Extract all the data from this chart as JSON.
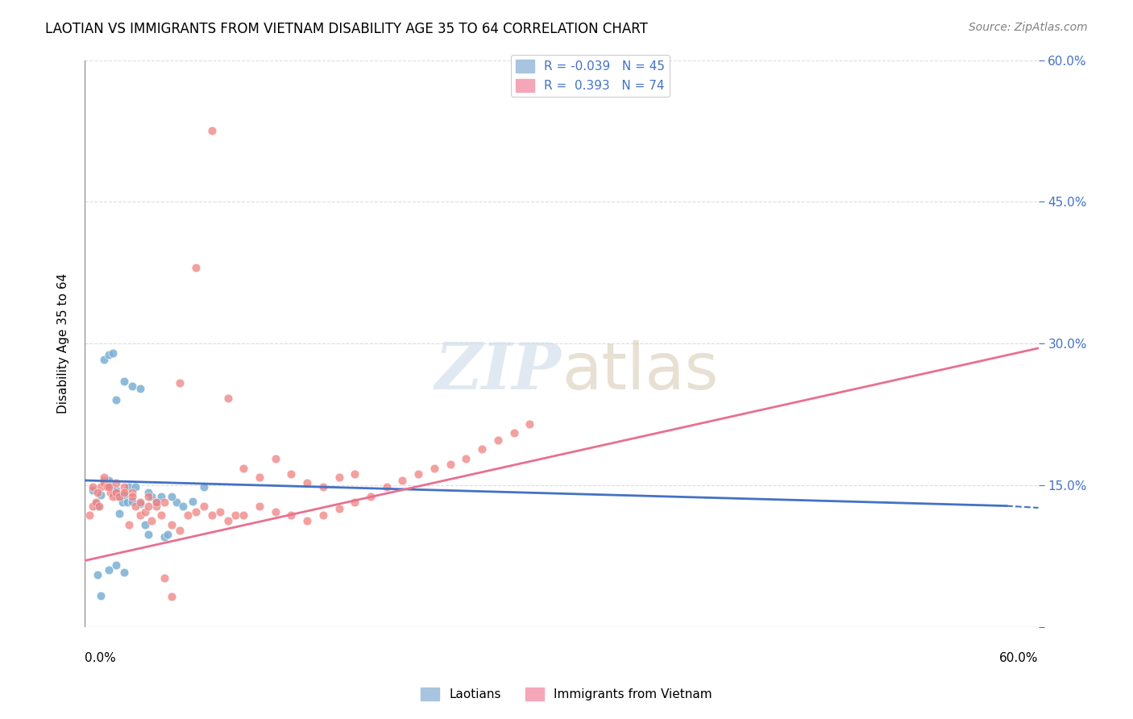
{
  "title": "LAOTIAN VS IMMIGRANTS FROM VIETNAM DISABILITY AGE 35 TO 64 CORRELATION CHART",
  "source": "Source: ZipAtlas.com",
  "ylabel": "Disability Age 35 to 64",
  "xlim": [
    0.0,
    0.6
  ],
  "ylim": [
    0.0,
    0.6
  ],
  "yticks": [
    0.0,
    0.15,
    0.3,
    0.45,
    0.6
  ],
  "ytick_labels": [
    "",
    "15.0%",
    "30.0%",
    "45.0%",
    "60.0%"
  ],
  "laotian_color": "#7bafd4",
  "vietnam_color": "#f08080",
  "laotian_line_color": "#4472c4",
  "vietnam_line_color": "#e87090",
  "legend_patch_lao": "#a8c4e0",
  "legend_patch_viet": "#f4a7b9",
  "background_color": "#ffffff",
  "grid_color": "#dddddd",
  "lao_line": {
    "x0": 0.0,
    "y0": 0.155,
    "x1": 0.58,
    "y1": 0.128,
    "xd0": 0.58,
    "yd0": 0.128,
    "xd1": 0.6,
    "yd1": 0.126
  },
  "viet_line": {
    "x0": 0.0,
    "y0": 0.07,
    "x1": 0.6,
    "y1": 0.295
  },
  "lao_x": [
    0.005,
    0.007,
    0.008,
    0.01,
    0.012,
    0.014,
    0.015,
    0.016,
    0.018,
    0.019,
    0.02,
    0.021,
    0.022,
    0.024,
    0.025,
    0.027,
    0.028,
    0.03,
    0.032,
    0.035,
    0.038,
    0.04,
    0.042,
    0.045,
    0.05,
    0.052,
    0.058,
    0.062,
    0.068,
    0.075,
    0.012,
    0.015,
    0.018,
    0.02,
    0.025,
    0.03,
    0.035,
    0.04,
    0.048,
    0.055,
    0.008,
    0.01,
    0.015,
    0.02,
    0.025
  ],
  "lao_y": [
    0.145,
    0.13,
    0.128,
    0.14,
    0.155,
    0.15,
    0.155,
    0.148,
    0.145,
    0.142,
    0.145,
    0.138,
    0.12,
    0.132,
    0.14,
    0.132,
    0.148,
    0.133,
    0.148,
    0.13,
    0.108,
    0.098,
    0.138,
    0.132,
    0.095,
    0.098,
    0.132,
    0.128,
    0.133,
    0.148,
    0.283,
    0.288,
    0.29,
    0.24,
    0.26,
    0.255,
    0.252,
    0.142,
    0.138,
    0.138,
    0.055,
    0.033,
    0.06,
    0.065,
    0.058
  ],
  "viet_x": [
    0.003,
    0.005,
    0.007,
    0.009,
    0.01,
    0.012,
    0.014,
    0.016,
    0.018,
    0.02,
    0.022,
    0.025,
    0.028,
    0.03,
    0.032,
    0.035,
    0.038,
    0.04,
    0.042,
    0.045,
    0.048,
    0.05,
    0.055,
    0.06,
    0.065,
    0.07,
    0.075,
    0.08,
    0.085,
    0.09,
    0.095,
    0.1,
    0.11,
    0.12,
    0.13,
    0.14,
    0.15,
    0.16,
    0.17,
    0.18,
    0.19,
    0.2,
    0.21,
    0.22,
    0.23,
    0.24,
    0.25,
    0.26,
    0.27,
    0.28,
    0.005,
    0.008,
    0.012,
    0.015,
    0.02,
    0.025,
    0.03,
    0.035,
    0.04,
    0.045,
    0.05,
    0.055,
    0.06,
    0.07,
    0.08,
    0.09,
    0.1,
    0.11,
    0.12,
    0.13,
    0.14,
    0.15,
    0.16,
    0.17
  ],
  "viet_y": [
    0.118,
    0.128,
    0.132,
    0.128,
    0.148,
    0.152,
    0.148,
    0.142,
    0.138,
    0.142,
    0.138,
    0.148,
    0.108,
    0.142,
    0.128,
    0.118,
    0.122,
    0.138,
    0.112,
    0.128,
    0.118,
    0.132,
    0.108,
    0.102,
    0.118,
    0.122,
    0.128,
    0.118,
    0.122,
    0.112,
    0.118,
    0.118,
    0.128,
    0.122,
    0.118,
    0.112,
    0.118,
    0.125,
    0.132,
    0.138,
    0.148,
    0.155,
    0.162,
    0.168,
    0.172,
    0.178,
    0.188,
    0.198,
    0.205,
    0.215,
    0.148,
    0.142,
    0.158,
    0.148,
    0.152,
    0.142,
    0.138,
    0.132,
    0.128,
    0.132,
    0.052,
    0.032,
    0.258,
    0.38,
    0.525,
    0.242,
    0.168,
    0.158,
    0.178,
    0.162,
    0.152,
    0.148,
    0.158,
    0.162
  ]
}
